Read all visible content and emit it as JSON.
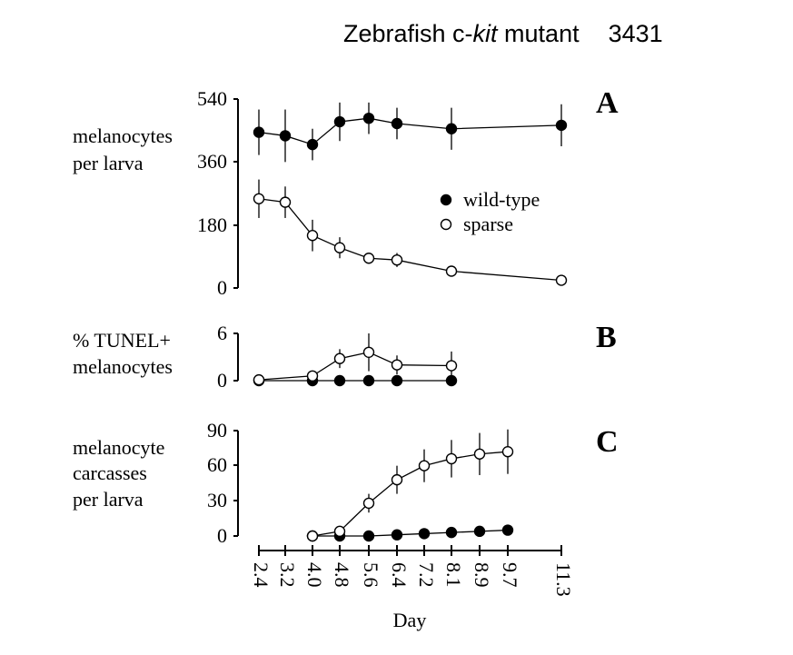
{
  "header": {
    "title_prefix": "Zebrafish c-",
    "title_italic": "kit",
    "title_suffix": " mutant",
    "code": "3431"
  },
  "chart_data": [
    {
      "type": "line",
      "panel_label": "A",
      "ylabel": [
        "melanocytes",
        "per larva"
      ],
      "yticks": [
        "540",
        "360",
        "180",
        "0"
      ],
      "ylim": [
        0,
        540
      ],
      "legend": {
        "placement": "right",
        "entries": [
          "wild-type",
          "sparse"
        ]
      },
      "series": [
        {
          "name": "wild-type",
          "marker": "filled",
          "x": [
            2.4,
            3.2,
            4.0,
            4.8,
            5.6,
            6.4,
            8.1,
            11.3
          ],
          "y": [
            445,
            435,
            410,
            475,
            485,
            470,
            455,
            465
          ],
          "err": [
            65,
            75,
            45,
            55,
            45,
            45,
            60,
            60
          ]
        },
        {
          "name": "sparse",
          "marker": "open",
          "x": [
            2.4,
            3.2,
            4.0,
            4.8,
            5.6,
            6.4,
            8.1,
            11.3
          ],
          "y": [
            255,
            245,
            150,
            115,
            85,
            80,
            48,
            22
          ],
          "err": [
            55,
            45,
            45,
            30,
            15,
            20,
            10,
            8
          ]
        }
      ]
    },
    {
      "type": "line",
      "panel_label": "B",
      "ylabel": [
        "% TUNEL+",
        "melanocytes"
      ],
      "yticks": [
        "6",
        "0"
      ],
      "ylim": [
        0,
        6
      ],
      "series": [
        {
          "name": "wild-type",
          "marker": "filled",
          "x": [
            2.4,
            4.0,
            4.8,
            5.6,
            6.4,
            8.1
          ],
          "y": [
            0,
            0,
            0,
            0,
            0,
            0
          ],
          "err": [
            0,
            0,
            0,
            0,
            0,
            0
          ]
        },
        {
          "name": "sparse",
          "marker": "open",
          "x": [
            2.4,
            4.0,
            4.8,
            5.6,
            6.4,
            8.1
          ],
          "y": [
            0.1,
            0.6,
            2.8,
            3.6,
            2.0,
            1.9
          ],
          "err": [
            0,
            0.6,
            1.2,
            2.4,
            1.2,
            1.8
          ]
        }
      ]
    },
    {
      "type": "line",
      "panel_label": "C",
      "ylabel": [
        "melanocyte",
        "carcasses",
        "per larva"
      ],
      "yticks": [
        "90",
        "60",
        "30",
        "0"
      ],
      "ylim": [
        0,
        90
      ],
      "series": [
        {
          "name": "wild-type",
          "marker": "filled",
          "x": [
            4.0,
            4.8,
            5.6,
            6.4,
            7.2,
            8.1,
            8.9,
            9.7
          ],
          "y": [
            0,
            0,
            0,
            1,
            2,
            3,
            4,
            5
          ],
          "err": [
            0,
            0,
            0,
            0,
            0,
            0,
            0,
            0
          ]
        },
        {
          "name": "sparse",
          "marker": "open",
          "x": [
            4.0,
            4.8,
            5.6,
            6.4,
            7.2,
            8.1,
            8.9,
            9.7
          ],
          "y": [
            0,
            4,
            28,
            48,
            60,
            66,
            70,
            72
          ],
          "err": [
            0,
            0,
            8,
            12,
            14,
            16,
            18,
            19
          ]
        }
      ]
    }
  ],
  "x_axis": {
    "label": "Day",
    "ticks": [
      "2.4",
      "3.2",
      "4.0",
      "4.8",
      "5.6",
      "6.4",
      "7.2",
      "8.1",
      "8.9",
      "9.7",
      "11.3"
    ]
  },
  "colors": {
    "ink": "#000000",
    "open_fill": "#ffffff"
  }
}
